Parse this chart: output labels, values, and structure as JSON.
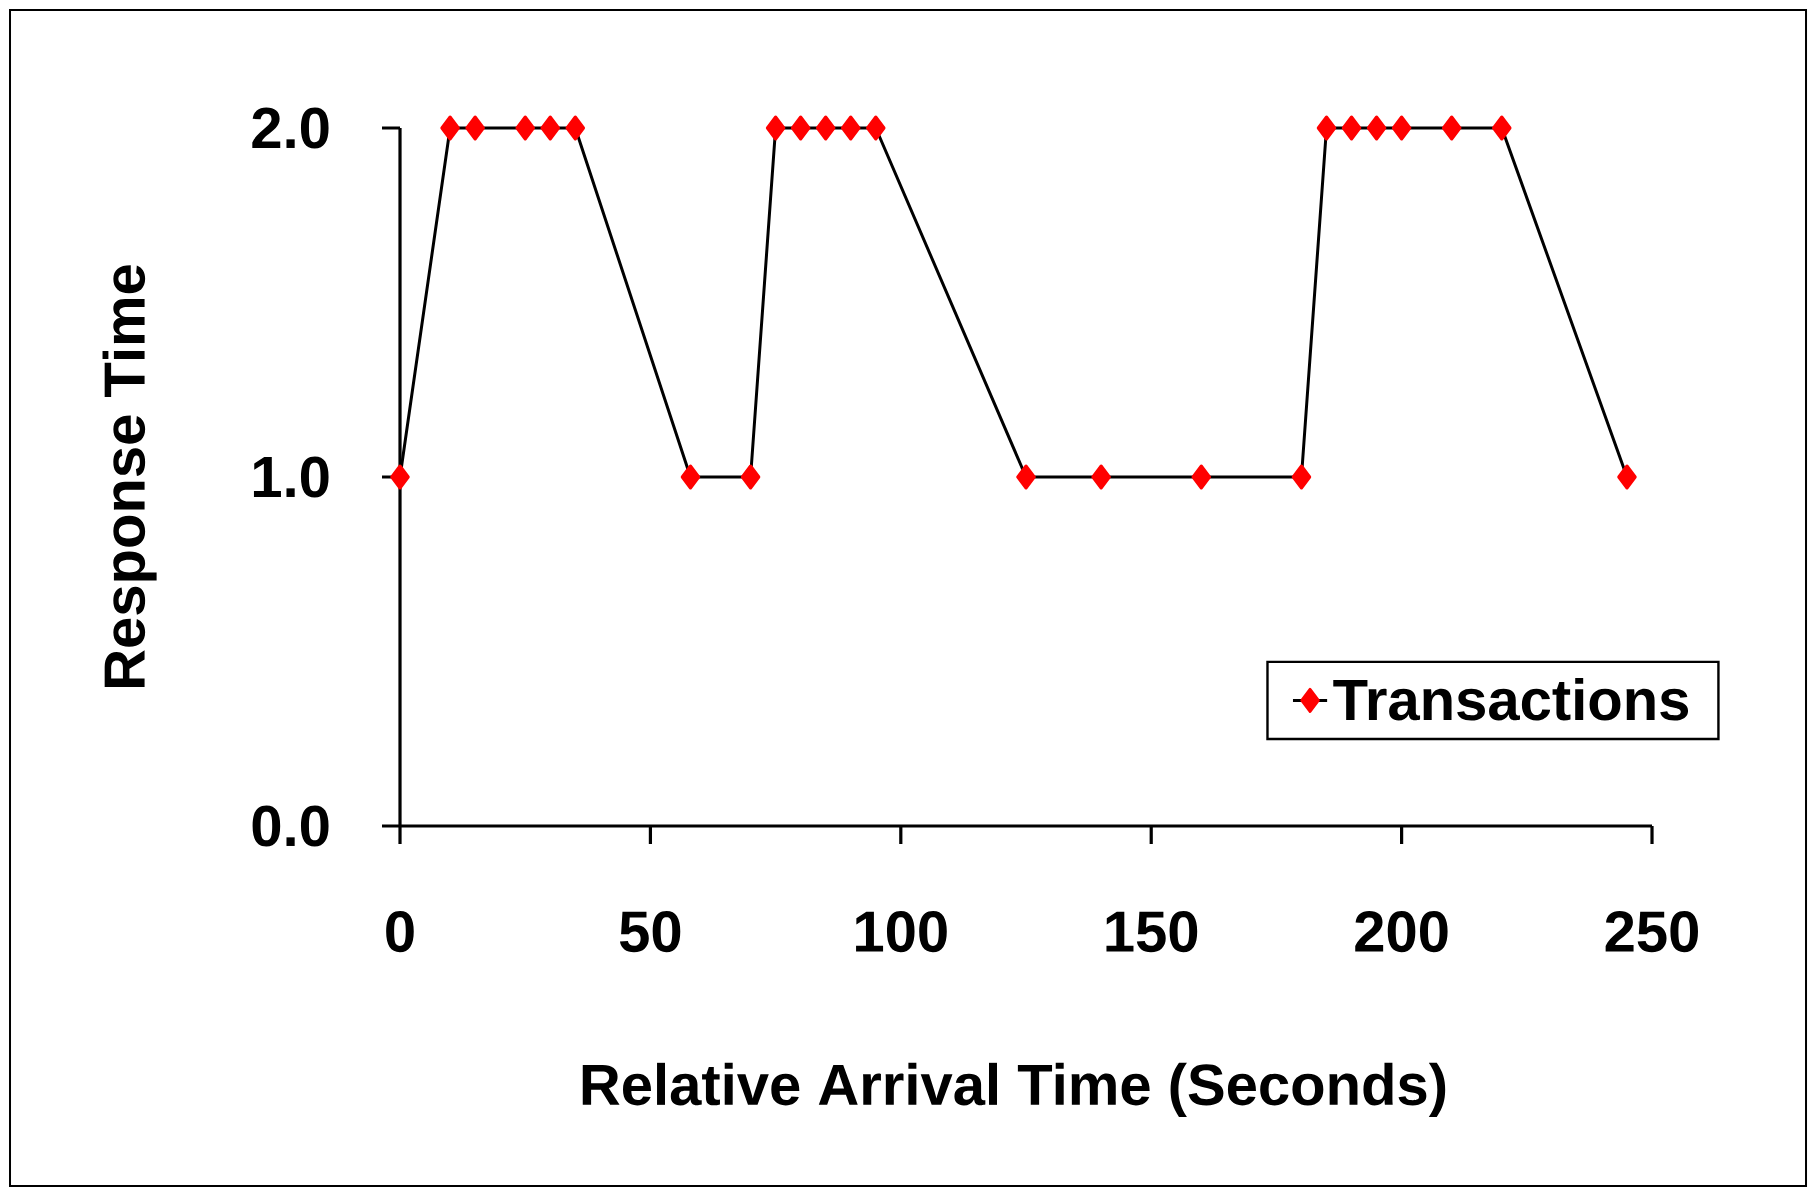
{
  "chart_data": {
    "type": "line",
    "xlabel": "Relative Arrival Time  (Seconds)",
    "ylabel": "Response Time",
    "xlim": [
      0,
      250
    ],
    "ylim": [
      0,
      2
    ],
    "xticks": [
      0,
      50,
      100,
      150,
      200,
      250
    ],
    "yticks": [
      {
        "value": 0,
        "label": "0.0"
      },
      {
        "value": 1,
        "label": "1.0"
      },
      {
        "value": 2,
        "label": "2.0"
      }
    ],
    "x": [
      0,
      10,
      15,
      25,
      30,
      35,
      58,
      70,
      75,
      80,
      85,
      90,
      95,
      125,
      140,
      160,
      180,
      185,
      190,
      195,
      200,
      210,
      220,
      245
    ],
    "series": [
      {
        "name": "Transactions",
        "color": "#ff0000",
        "values": [
          1,
          2,
          2,
          2,
          2,
          2,
          1,
          1,
          2,
          2,
          2,
          2,
          2,
          1,
          1,
          1,
          1,
          2,
          2,
          2,
          2,
          2,
          2,
          1
        ]
      }
    ],
    "marker": "diamond",
    "line_style": "solid",
    "grid": false,
    "legend": "bottom right"
  }
}
